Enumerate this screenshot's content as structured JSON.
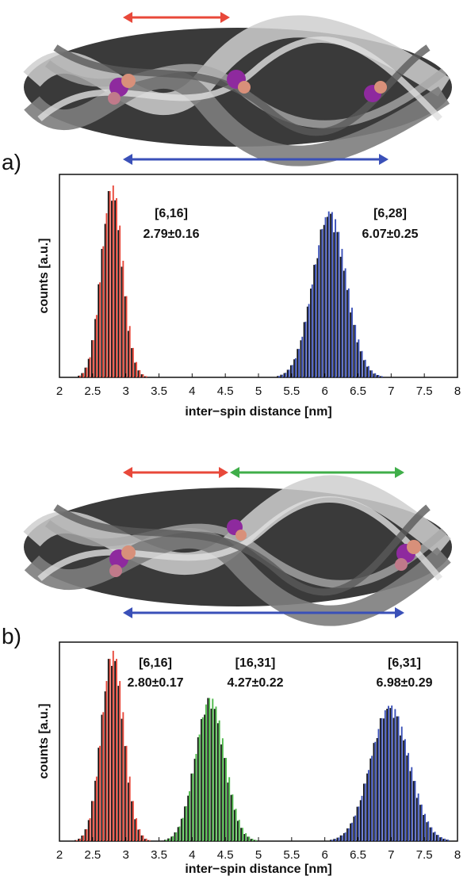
{
  "panels": [
    {
      "label": "a)",
      "arrows": [
        "red",
        "blue"
      ],
      "molecule_image": "dna-helix-rendering-with-spin-labels",
      "chart_data": {
        "type": "bar",
        "title": "",
        "xlabel": "inter−spin distance [nm]",
        "ylabel": "counts [a.u.]",
        "xlim": [
          2,
          8
        ],
        "ylim": [
          0,
          1
        ],
        "grid": false,
        "xticks": [
          "2",
          "2.5",
          "3",
          "3.5",
          "4",
          "4.5",
          "5",
          "5.5",
          "6",
          "6.5",
          "7",
          "7.5",
          "8"
        ],
        "annotations": [
          {
            "pair": "[6,16]",
            "value": "2.79±0.16",
            "color": "red"
          },
          {
            "pair": "[6,28]",
            "value": "6.07±0.25",
            "color": "blue"
          }
        ],
        "series": [
          {
            "color": "#e8483a",
            "mean": 2.79,
            "sd": 0.16,
            "peak": 0.97
          },
          {
            "color": "#3a50b8",
            "mean": 6.07,
            "sd": 0.25,
            "peak": 0.84
          }
        ]
      }
    },
    {
      "label": "b)",
      "arrows": [
        "red",
        "green",
        "blue"
      ],
      "molecule_image": "dna-helix-rendering-with-spin-labels",
      "chart_data": {
        "type": "bar",
        "title": "",
        "xlabel": "inter−spin distance [nm]",
        "ylabel": "counts [a.u.]",
        "xlim": [
          2,
          8
        ],
        "ylim": [
          0,
          1
        ],
        "grid": false,
        "xticks": [
          "2",
          "2.5",
          "3",
          "3.5",
          "4",
          "4.5",
          "5",
          "5.5",
          "6",
          "6.5",
          "7",
          "7.5",
          "8"
        ],
        "annotations": [
          {
            "pair": "[6,16]",
            "value": "2.80±0.17",
            "color": "red"
          },
          {
            "pair": "[16,31]",
            "value": "4.27±0.22",
            "color": "green"
          },
          {
            "pair": "[6,31]",
            "value": "6.98±0.29",
            "color": "blue"
          }
        ],
        "series": [
          {
            "color": "#e8483a",
            "mean": 2.8,
            "sd": 0.17,
            "peak": 0.98
          },
          {
            "color": "#4cb848",
            "mean": 4.27,
            "sd": 0.22,
            "peak": 0.74
          },
          {
            "color": "#3a50b8",
            "mean": 6.98,
            "sd": 0.29,
            "peak": 0.7
          }
        ]
      }
    }
  ],
  "colors": {
    "red": "#e8483a",
    "green": "#3fae49",
    "blue": "#3a50b8",
    "helix_dark": "#2c2c2c",
    "helix_light": "#bdbdbd",
    "spin_label": "#8e2a9e"
  }
}
